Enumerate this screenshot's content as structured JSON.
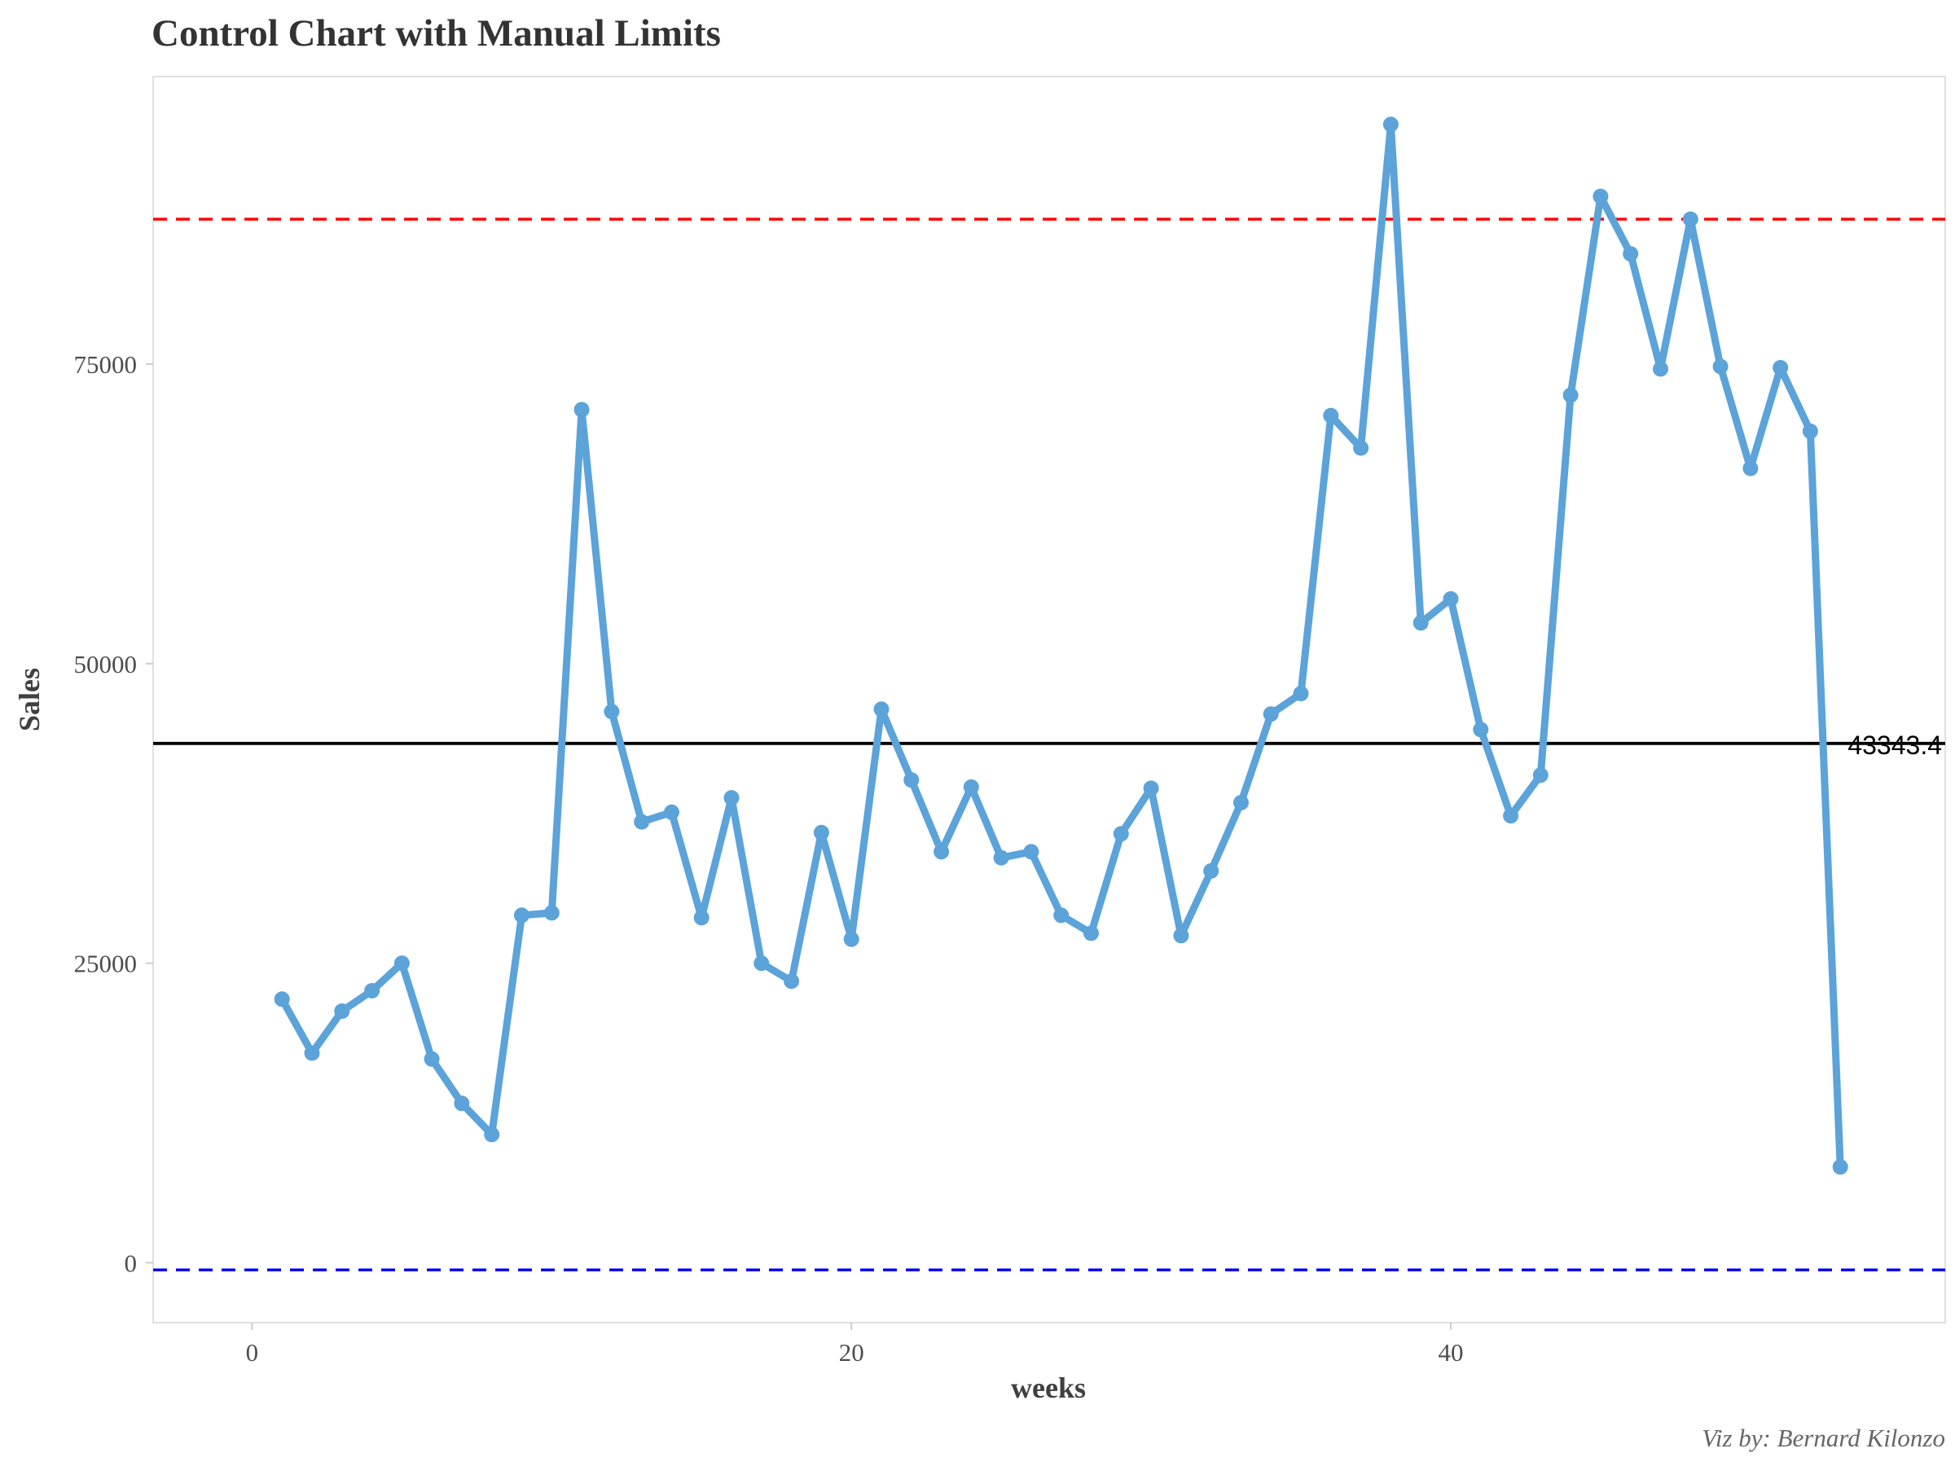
{
  "chart_data": {
    "type": "line",
    "title": "Control Chart with Manual Limits",
    "xlabel": "weeks",
    "ylabel": "Sales",
    "caption": "Viz by: Bernard Kilonzo",
    "xlim": [
      -3.3,
      56.5
    ],
    "ylim": [
      -5000,
      99000
    ],
    "x_ticks": [
      0,
      20,
      40
    ],
    "y_ticks": [
      0,
      25000,
      50000,
      75000
    ],
    "grid": false,
    "legend": "none",
    "series": [
      {
        "x": [
          1,
          2,
          3,
          4,
          5,
          6,
          7,
          8,
          9,
          10,
          11,
          12,
          13,
          14,
          15,
          16,
          17,
          18,
          19,
          20,
          21,
          22,
          23,
          24,
          25,
          26,
          27,
          28,
          29,
          30,
          31,
          32,
          33,
          34,
          35,
          36,
          37,
          38,
          39,
          40,
          41,
          42,
          43,
          44,
          45,
          46,
          47,
          48,
          49,
          50,
          51,
          52,
          53
        ],
        "values": [
          22000,
          17500,
          21000,
          22700,
          25000,
          17000,
          13300,
          10700,
          29000,
          29200,
          71200,
          46000,
          36800,
          37600,
          28800,
          38800,
          25000,
          23500,
          35900,
          27000,
          46200,
          40300,
          34300,
          39700,
          33800,
          34300,
          29000,
          27500,
          35800,
          39600,
          27300,
          32700,
          38400,
          45800,
          47500,
          70700,
          68000,
          95000,
          53400,
          55400,
          44500,
          37300,
          40700,
          72400,
          89000,
          84200,
          74600,
          87100,
          74800,
          66300,
          74700,
          69400,
          8000
        ],
        "color": "#5ba3d9"
      }
    ],
    "reference_lines": [
      {
        "value": 87100,
        "color": "#ff0000",
        "style": "dashed"
      },
      {
        "value": 43343.4,
        "color": "#000000",
        "style": "solid",
        "label": "43343.4"
      },
      {
        "value": -600,
        "color": "#0000ff",
        "style": "dashed"
      }
    ]
  }
}
